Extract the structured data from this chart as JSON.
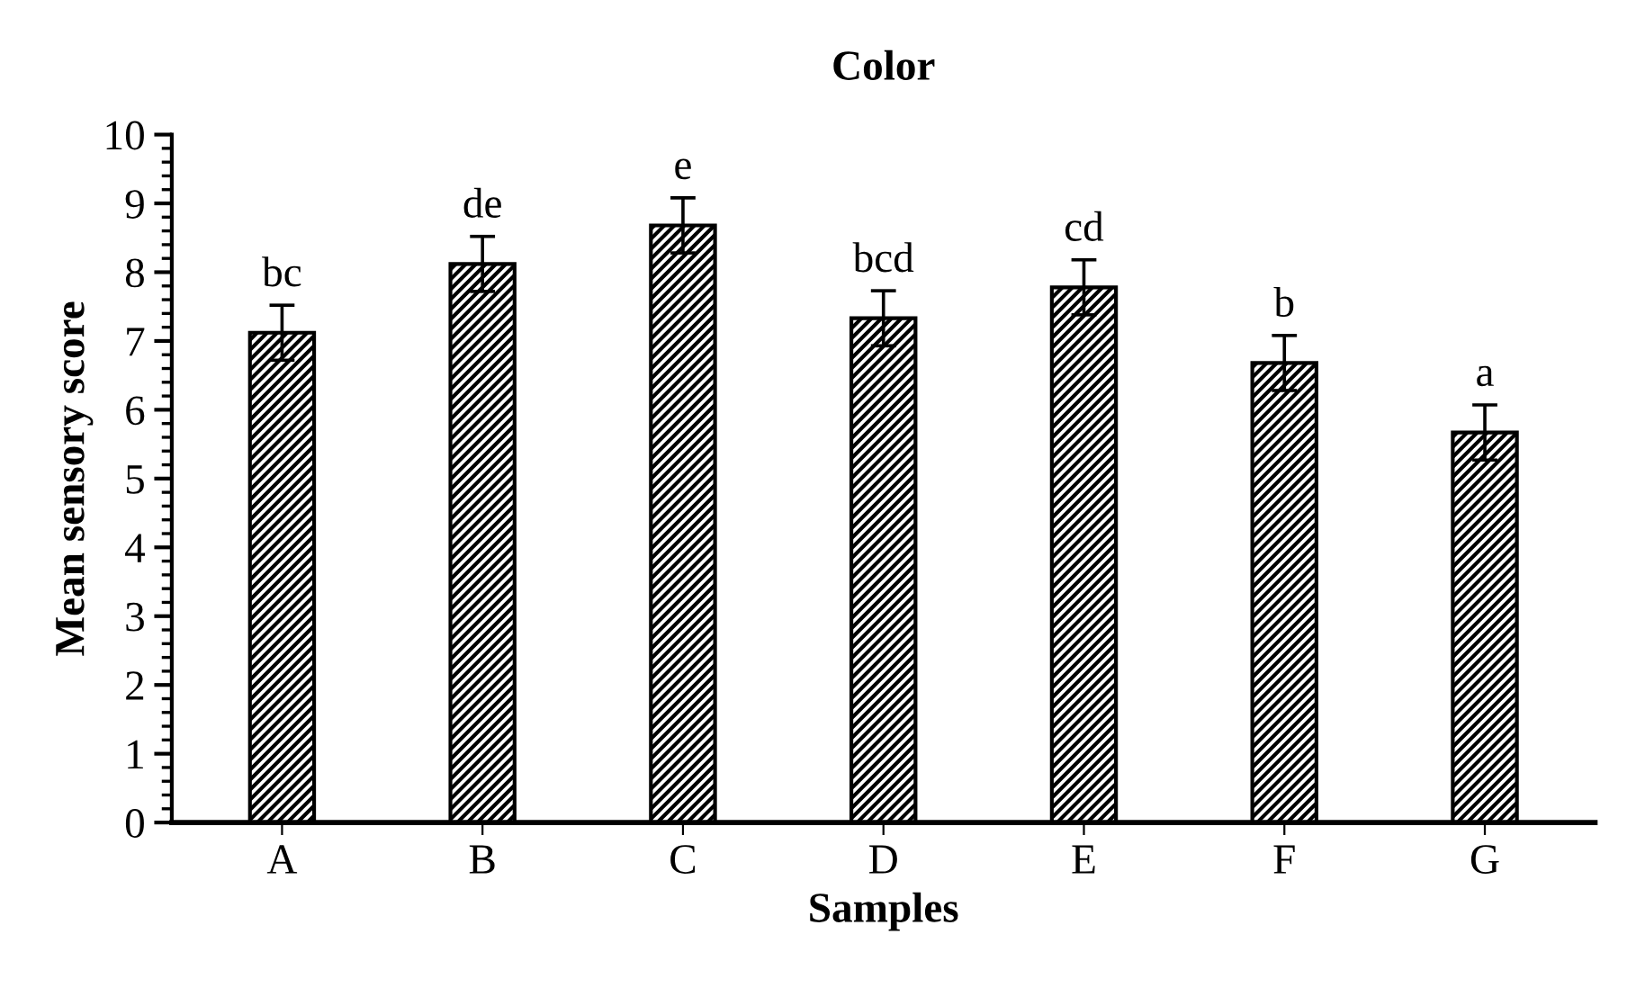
{
  "chart_data": {
    "type": "bar",
    "title": "Color",
    "xlabel": "Samples",
    "ylabel": "Mean sensory score",
    "categories": [
      "A",
      "B",
      "C",
      "D",
      "E",
      "F",
      "G"
    ],
    "series": [
      {
        "color": "#000000",
        "values": [
          7.12,
          8.12,
          8.68,
          7.33,
          7.78,
          6.68,
          5.67
        ],
        "errors": [
          0.4,
          0.4,
          0.4,
          0.4,
          0.4,
          0.4,
          0.4
        ]
      }
    ],
    "ylim": [
      0,
      10
    ],
    "yticks": [
      0,
      1,
      2,
      3,
      4,
      5,
      6,
      7,
      8,
      9,
      10
    ],
    "grid": false,
    "legend": false,
    "annotations": [
      {
        "text": "bc",
        "x": "A",
        "y": 7.52
      },
      {
        "text": "de",
        "x": "B",
        "y": 8.52
      },
      {
        "text": "e",
        "x": "C",
        "y": 9.08
      },
      {
        "text": "bcd",
        "x": "D",
        "y": 7.73
      },
      {
        "text": "cd",
        "x": "E",
        "y": 8.18
      },
      {
        "text": "b",
        "x": "F",
        "y": 7.08
      },
      {
        "text": "a",
        "x": "G",
        "y": 6.07
      }
    ]
  }
}
